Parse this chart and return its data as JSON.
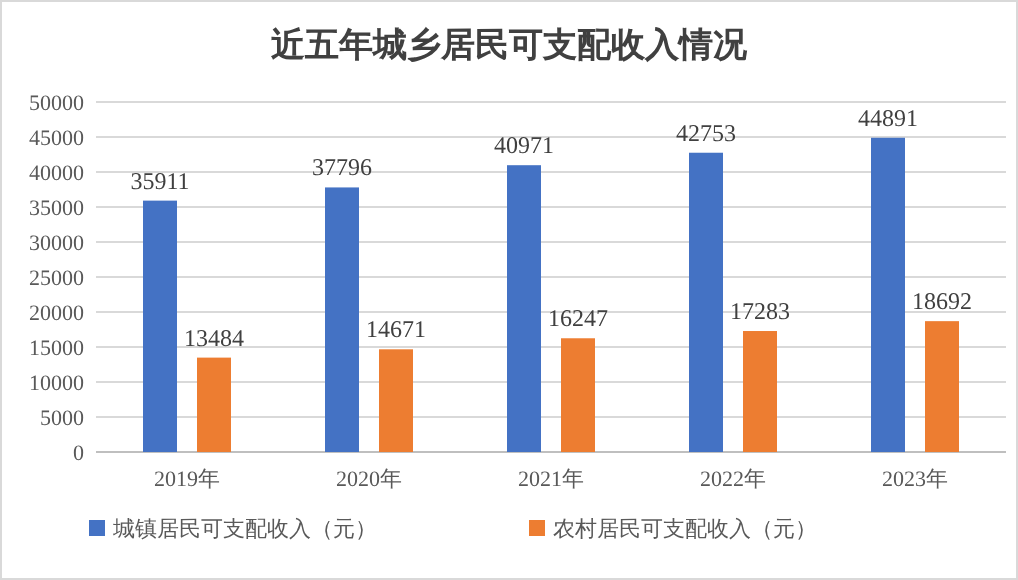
{
  "chart_data": {
    "type": "bar",
    "title": "近五年城乡居民可支配收入情况",
    "categories": [
      "2019年",
      "2020年",
      "2021年",
      "2022年",
      "2023年"
    ],
    "series": [
      {
        "name": "城镇居民可支配收入（元）",
        "color": "#4472c4",
        "values": [
          35911,
          37796,
          40971,
          42753,
          44891
        ]
      },
      {
        "name": "农村居民可支配收入（元）",
        "color": "#ed7d31",
        "values": [
          13484,
          14671,
          16247,
          17283,
          18692
        ]
      }
    ],
    "ylim": [
      0,
      50000
    ],
    "yticks": [
      0,
      5000,
      10000,
      15000,
      20000,
      25000,
      30000,
      35000,
      40000,
      45000,
      50000
    ],
    "grid": "y",
    "legend": "bottom",
    "data_labels": true
  }
}
